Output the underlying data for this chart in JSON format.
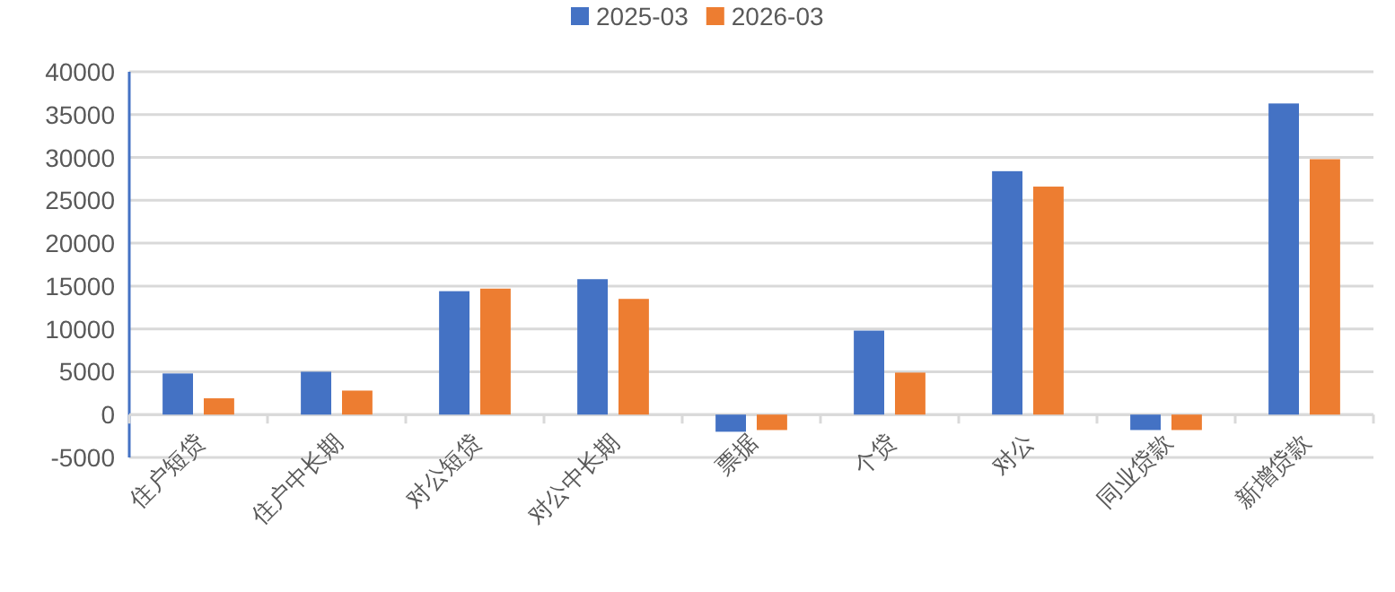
{
  "chart_data": {
    "type": "bar",
    "categories": [
      "住户短贷",
      "住户中长期",
      "对公短贷",
      "对公中长期",
      "票据",
      "个贷",
      "对公",
      "同业贷款",
      "新增贷款"
    ],
    "series": [
      {
        "name": "2025-03",
        "color": "#4472c4",
        "values": [
          4800,
          5000,
          14400,
          15800,
          -2000,
          9800,
          28400,
          -1800,
          36300
        ]
      },
      {
        "name": "2026-03",
        "color": "#ed7d31",
        "values": [
          1900,
          2800,
          14700,
          13500,
          -1800,
          4900,
          26600,
          -1800,
          29800
        ]
      }
    ],
    "ylim": [
      -5000,
      40000
    ],
    "yticks": [
      -5000,
      0,
      5000,
      10000,
      15000,
      20000,
      25000,
      30000,
      35000,
      40000
    ],
    "grid": "y",
    "legend": "top"
  }
}
